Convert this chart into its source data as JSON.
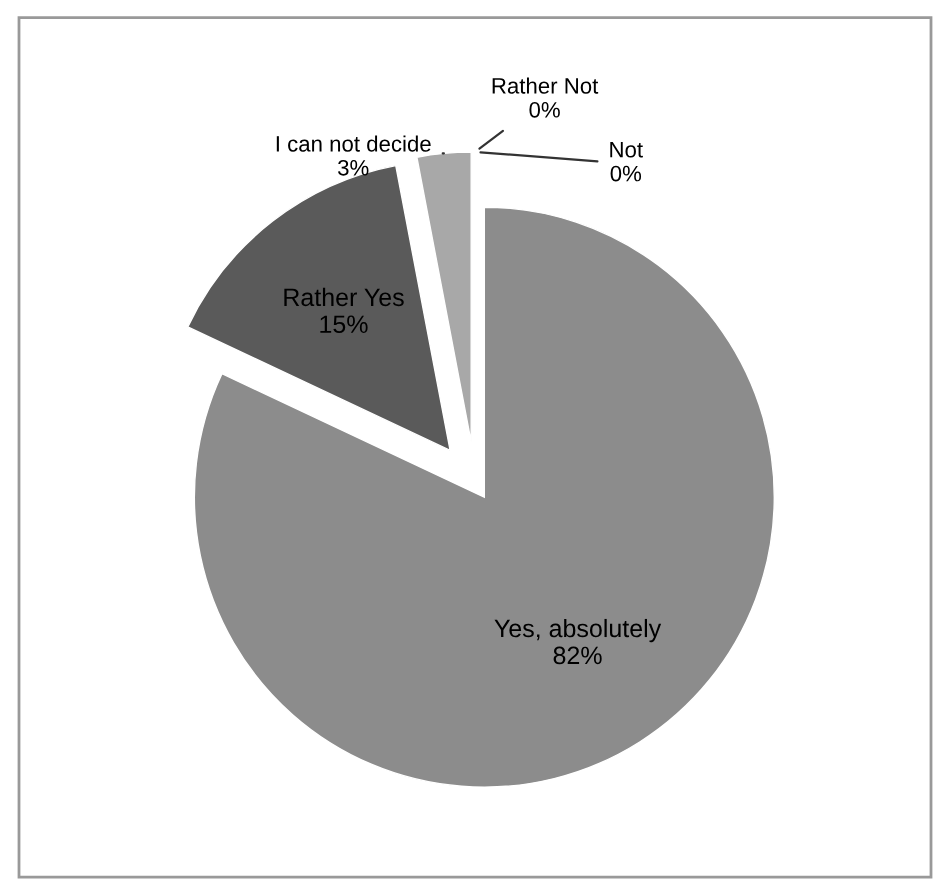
{
  "chart_data": {
    "type": "pie",
    "categories": [
      "Yes, absolutely",
      "Rather Yes",
      "I can not decide",
      "Rather Not",
      "Not"
    ],
    "values": [
      82,
      15,
      3,
      0,
      0
    ],
    "colors": [
      "#8c8c8c",
      "#5a5a5a",
      "#a8a8a8",
      "#bdbdbd",
      "#d0d0d0"
    ],
    "value_labels": [
      "82%",
      "15%",
      "3%",
      "0%",
      "0%"
    ]
  }
}
